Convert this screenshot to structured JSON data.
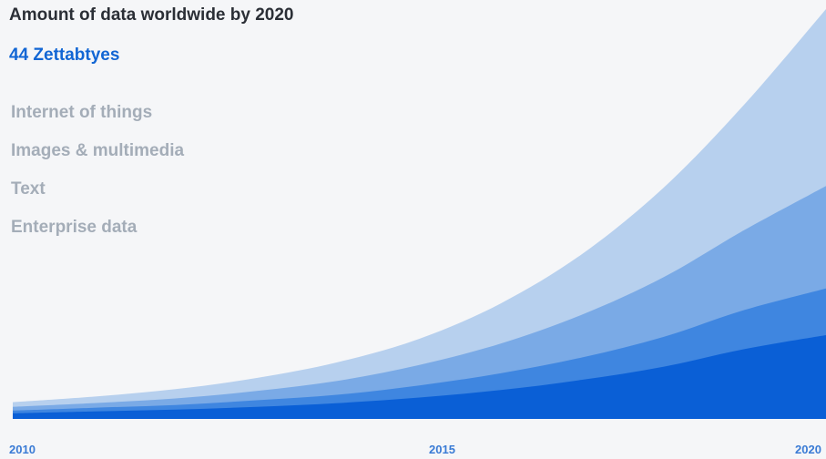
{
  "chart_data": {
    "type": "area",
    "title": "Amount of data worldwide by 2020",
    "subtitle": "44 Zettabtyes",
    "x_ticks": [
      "2010",
      "2015",
      "2020"
    ],
    "xlim": [
      2010,
      2020
    ],
    "stacked": true,
    "x": [
      2010,
      2011,
      2012,
      2013,
      2014,
      2015,
      2016,
      2017,
      2018,
      2019,
      2020
    ],
    "legend": [
      "Internet of things",
      "Images & multimedia",
      "Text",
      "Enterprise data"
    ],
    "series": [
      {
        "name": "Enterprise data",
        "color": "#0a5fd6",
        "values": [
          0.6,
          0.8,
          1.0,
          1.3,
          1.7,
          2.3,
          3.1,
          4.2,
          5.6,
          7.5,
          9.0
        ]
      },
      {
        "name": "Text",
        "color": "#3f86e0",
        "values": [
          0.3,
          0.4,
          0.5,
          0.7,
          0.9,
          1.3,
          1.8,
          2.4,
          3.2,
          4.2,
          5.0
        ]
      },
      {
        "name": "Images & multimedia",
        "color": "#7aaae6",
        "values": [
          0.4,
          0.5,
          0.7,
          1.0,
          1.5,
          2.2,
          3.2,
          4.6,
          6.4,
          8.6,
          11.0
        ]
      },
      {
        "name": "Internet of things",
        "color": "#b7d0ee",
        "values": [
          0.5,
          0.7,
          1.0,
          1.4,
          2.0,
          2.8,
          4.3,
          6.5,
          9.6,
          13.5,
          19.0
        ]
      }
    ]
  }
}
